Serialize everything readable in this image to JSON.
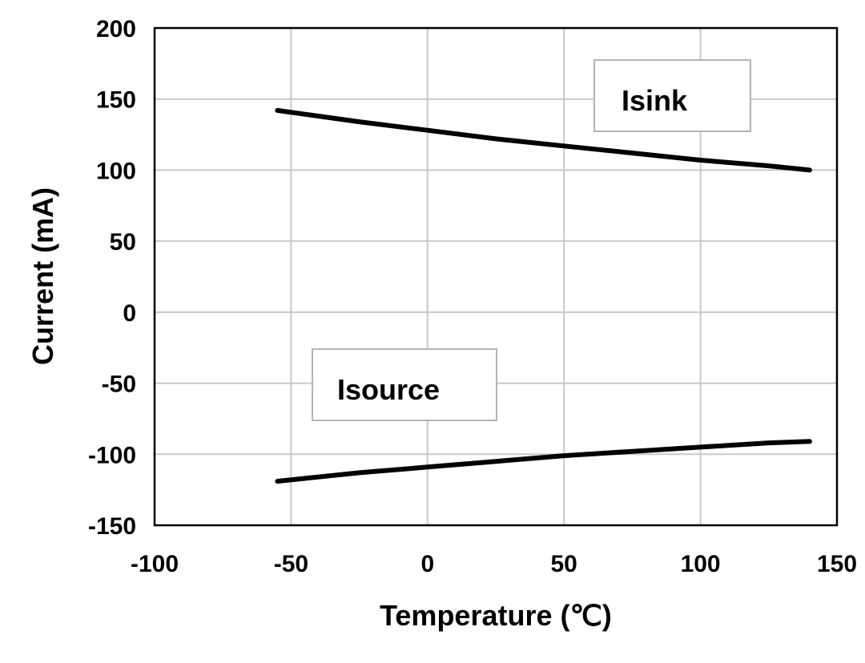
{
  "chart_data": {
    "type": "line",
    "title": "",
    "xlabel": "Temperature (℃)",
    "ylabel": "Current (mA)",
    "xlim": [
      -100,
      150
    ],
    "ylim": [
      -150,
      200
    ],
    "xticks": [
      -100,
      -50,
      0,
      50,
      100,
      150
    ],
    "yticks": [
      -150,
      -100,
      -50,
      0,
      50,
      100,
      150,
      200
    ],
    "xtick_labels": [
      "-100",
      "-50",
      "0",
      "50",
      "100",
      "150"
    ],
    "ytick_labels": [
      "-150",
      "-100",
      "-50",
      "0",
      "50",
      "100",
      "150",
      "200"
    ],
    "grid": true,
    "legend": "none",
    "series": [
      {
        "name": "Isink",
        "x": [
          -55,
          -25,
          0,
          25,
          50,
          75,
          100,
          125,
          140
        ],
        "values": [
          142,
          134,
          128,
          122,
          117,
          112,
          107,
          103,
          100
        ]
      },
      {
        "name": "Isource",
        "x": [
          -55,
          -25,
          0,
          25,
          50,
          75,
          100,
          125,
          140
        ],
        "values": [
          -119,
          -113,
          -109,
          -105,
          -101,
          -98,
          -95,
          -92,
          -91
        ]
      }
    ],
    "annotations": [
      {
        "text": "Isink",
        "series": 0
      },
      {
        "text": "Isource",
        "series": 1
      }
    ]
  }
}
